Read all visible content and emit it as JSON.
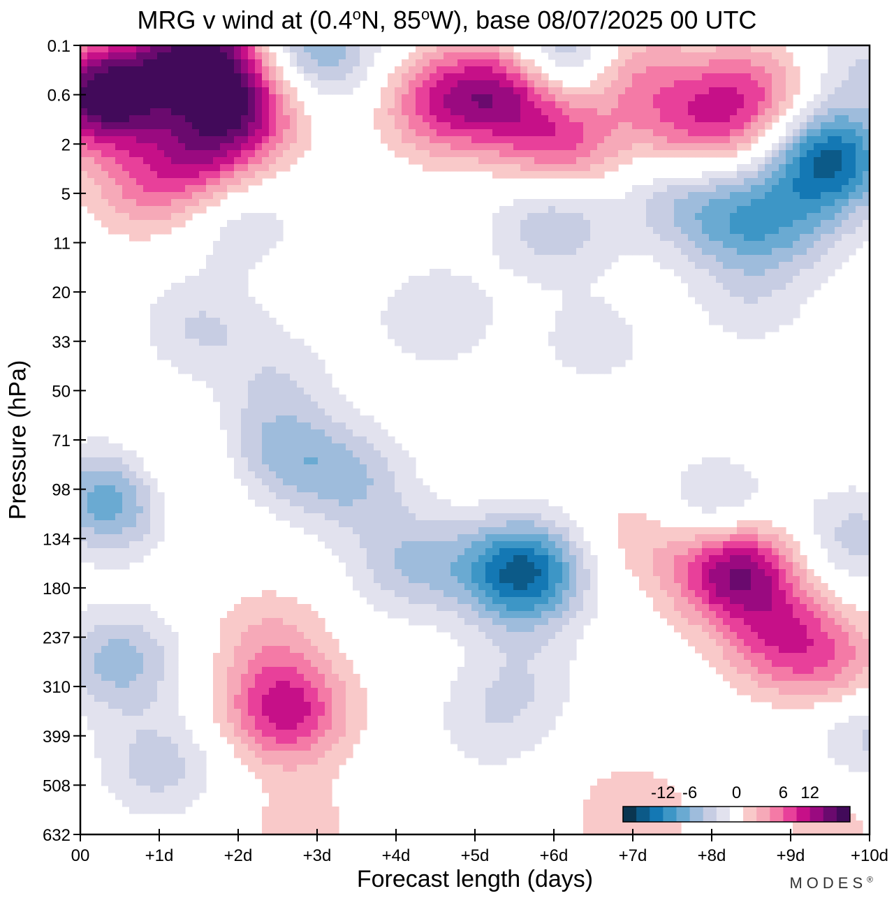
{
  "chart_data": {
    "type": "heatmap",
    "title_text": "MRG v wind at (0.4",
    "title_lat": "N, 85",
    "title_lon": "W),  base 08/07/2025  00 UTC",
    "title_deg": "o",
    "xlabel": "Forecast length (days)",
    "ylabel": "Pressure (hPa)",
    "x_ticks": [
      "00",
      "+1d",
      "+2d",
      "+3d",
      "+4d",
      "+5d",
      "+6d",
      "+7d",
      "+8d",
      "+9d",
      "+10d"
    ],
    "y_ticks": [
      "0.1",
      "0.6",
      "2",
      "5",
      "11",
      "20",
      "33",
      "50",
      "71",
      "98",
      "134",
      "180",
      "237",
      "310",
      "399",
      "508",
      "632"
    ],
    "xlim": [
      0,
      10
    ],
    "colorbar": {
      "labels": [
        "-12",
        "-6",
        "0",
        "6",
        "12"
      ],
      "levels": [
        -16,
        -14,
        -12,
        -10,
        -8,
        -6,
        -4,
        -2,
        2,
        4,
        6,
        8,
        10,
        12,
        14,
        16
      ],
      "colors": [
        "#0a3550",
        "#0c5a88",
        "#1478b4",
        "#3d96c6",
        "#6aaad2",
        "#9ebcdc",
        "#c7cde3",
        "#e2e2ee",
        "#ffffff",
        "#f9c9c9",
        "#f6a9b8",
        "#f47aa6",
        "#e8409a",
        "#c61088",
        "#9a0a80",
        "#6a0a6e",
        "#420a5a"
      ]
    },
    "fields": [
      {
        "x": 0.3,
        "y": 1.0,
        "v": 18
      },
      {
        "x": 1.5,
        "y": 0.2,
        "v": 16
      },
      {
        "x": 2.0,
        "y": 1.3,
        "v": 12
      },
      {
        "x": 1.5,
        "y": 2.3,
        "v": 8
      },
      {
        "x": 3.0,
        "y": 0.1,
        "v": -8
      },
      {
        "x": 4.6,
        "y": 1.2,
        "v": 9
      },
      {
        "x": 5.5,
        "y": 0.8,
        "v": 13
      },
      {
        "x": 6.0,
        "y": 0.3,
        "v": -11
      },
      {
        "x": 6.1,
        "y": 2.0,
        "v": 8
      },
      {
        "x": 7.0,
        "y": 0.6,
        "v": 6
      },
      {
        "x": 7.8,
        "y": 1.7,
        "v": 7
      },
      {
        "x": 8.5,
        "y": 1.0,
        "v": 8
      },
      {
        "x": 9.5,
        "y": 2.3,
        "v": -14
      },
      {
        "x": 9.9,
        "y": 0.4,
        "v": -4
      },
      {
        "x": 6.0,
        "y": 3.6,
        "v": -6
      },
      {
        "x": 7.6,
        "y": 3.1,
        "v": -5
      },
      {
        "x": 8.4,
        "y": 3.6,
        "v": -7
      },
      {
        "x": 9.1,
        "y": 3.6,
        "v": -4
      },
      {
        "x": 2.0,
        "y": 3.5,
        "v": -4
      },
      {
        "x": 0.8,
        "y": 2.9,
        "v": 5
      },
      {
        "x": 1.5,
        "y": 5.7,
        "v": -4
      },
      {
        "x": 2.5,
        "y": 6.7,
        "v": -3
      },
      {
        "x": 4.5,
        "y": 5.5,
        "v": -4
      },
      {
        "x": 6.5,
        "y": 6.0,
        "v": -3
      },
      {
        "x": 8.5,
        "y": 5.2,
        "v": -3
      },
      {
        "x": 2.5,
        "y": 8.2,
        "v": -6
      },
      {
        "x": 3.4,
        "y": 8.8,
        "v": -6
      },
      {
        "x": 1.2,
        "y": 8.7,
        "v": 4
      },
      {
        "x": 0.4,
        "y": 9.2,
        "v": -10
      },
      {
        "x": 8.0,
        "y": 9.5,
        "v": -7
      },
      {
        "x": 9.8,
        "y": 10.0,
        "v": -5
      },
      {
        "x": 5.6,
        "y": 10.7,
        "v": -15
      },
      {
        "x": 4.2,
        "y": 10.5,
        "v": -6
      },
      {
        "x": 8.3,
        "y": 10.6,
        "v": 15
      },
      {
        "x": 7.2,
        "y": 9.9,
        "v": 4
      },
      {
        "x": 8.9,
        "y": 12.0,
        "v": 8
      },
      {
        "x": 9.6,
        "y": 12.6,
        "v": 5
      },
      {
        "x": 0.5,
        "y": 12.5,
        "v": -7
      },
      {
        "x": 2.6,
        "y": 13.5,
        "v": 11
      },
      {
        "x": 2.4,
        "y": 12.0,
        "v": 4
      },
      {
        "x": 5.6,
        "y": 12.8,
        "v": -3
      },
      {
        "x": 5.2,
        "y": 13.8,
        "v": -3
      },
      {
        "x": 1.0,
        "y": 14.6,
        "v": -5
      },
      {
        "x": 10.0,
        "y": 14.0,
        "v": -5
      },
      {
        "x": 7.0,
        "y": 15.6,
        "v": 4
      },
      {
        "x": 2.8,
        "y": 15.9,
        "v": 3
      },
      {
        "x": 9.5,
        "y": 15.8,
        "v": 3
      }
    ]
  },
  "brand": "MODES",
  "brand_mark": "®"
}
